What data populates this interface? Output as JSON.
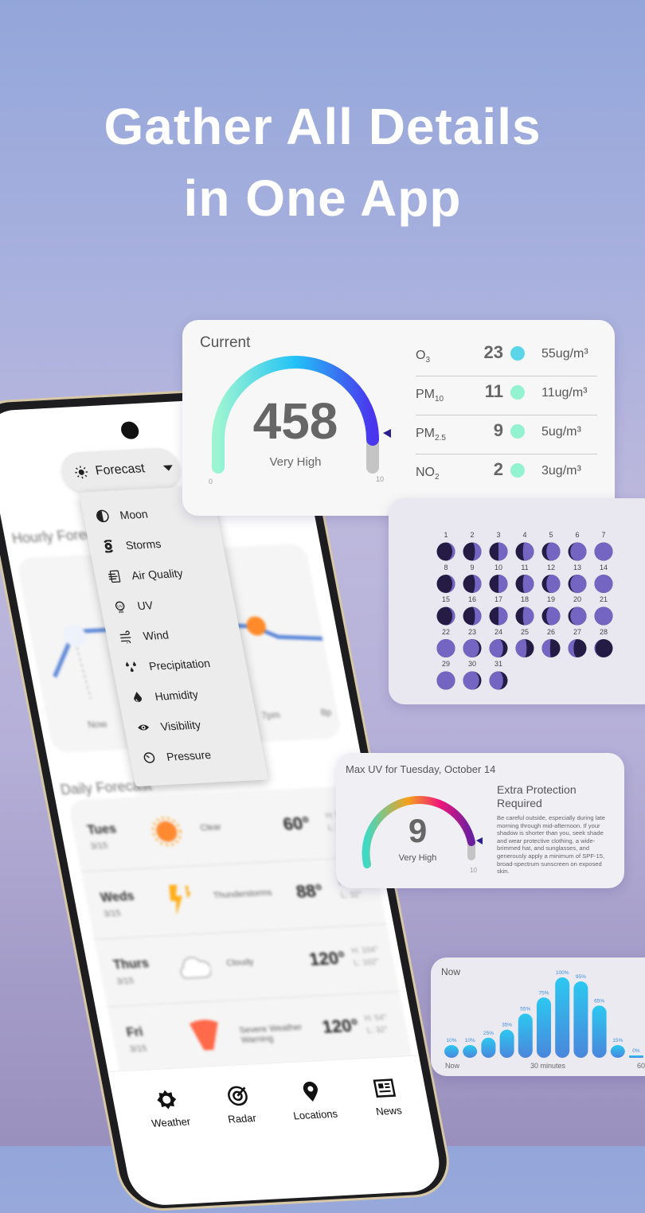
{
  "hero": {
    "line1": "Gather All Details",
    "line2": "in One App"
  },
  "phone": {
    "selector": {
      "label": "Forecast",
      "icon": "sun-icon"
    },
    "menu": [
      {
        "label": "Moon",
        "icon": "moon-icon"
      },
      {
        "label": "Storms",
        "icon": "hurricane-icon"
      },
      {
        "label": "Air Quality",
        "icon": "air-quality-icon"
      },
      {
        "label": "UV",
        "icon": "uv-icon"
      },
      {
        "label": "Wind",
        "icon": "wind-icon"
      },
      {
        "label": "Precipitation",
        "icon": "precipitation-icon"
      },
      {
        "label": "Humidity",
        "icon": "humidity-icon"
      },
      {
        "label": "Visibility",
        "icon": "eye-icon"
      },
      {
        "label": "Pressure",
        "icon": "gauge-icon"
      }
    ],
    "hourly_label": "Hourly Forecast",
    "hourly_times": [
      "Now",
      "7pm",
      "8p"
    ],
    "daily_label": "Daily Forecast",
    "daily": [
      {
        "day": "Tues",
        "date": "3/15",
        "condition": "Clear",
        "temp": "60°",
        "high": "H: 54°",
        "low": "L: 32°",
        "icon": "sun"
      },
      {
        "day": "Weds",
        "date": "3/15",
        "condition": "Thunderstorms",
        "temp": "88°",
        "high": "H: 54°",
        "low": "L: 32°",
        "icon": "lightning"
      },
      {
        "day": "Thurs",
        "date": "3/15",
        "condition": "Cloudy",
        "temp": "120°",
        "high": "H: 104°",
        "low": "L: 102°",
        "icon": "cloud"
      },
      {
        "day": "Fri",
        "date": "3/15",
        "condition": "Severe Weather Warning",
        "temp": "120°",
        "high": "H: 54°",
        "low": "L: 32°",
        "icon": "tornado"
      }
    ],
    "nav": [
      {
        "label": "Weather",
        "icon": "sun-gear-icon"
      },
      {
        "label": "Radar",
        "icon": "radar-icon"
      },
      {
        "label": "Locations",
        "icon": "location-pin-icon"
      },
      {
        "label": "News",
        "icon": "news-icon"
      }
    ]
  },
  "air_quality": {
    "title": "Current",
    "value": "458",
    "level": "Very High",
    "min": "0",
    "max": "10",
    "fill": 0.92,
    "rows": [
      {
        "name": "O",
        "sub": "3",
        "value": "23",
        "color": "#5ad6e8",
        "amount": "55ug/m³"
      },
      {
        "name": "PM",
        "sub": "10",
        "value": "11",
        "color": "#93f2cf",
        "amount": "11ug/m³"
      },
      {
        "name": "PM",
        "sub": "2.5",
        "value": "9",
        "color": "#93f2cf",
        "amount": "5ug/m³"
      },
      {
        "name": "NO",
        "sub": "2",
        "value": "2",
        "color": "#93f2cf",
        "amount": "3ug/m³"
      }
    ]
  },
  "moon_calendar": {
    "days": [
      {
        "d": "1",
        "lit": 0.15,
        "side": "right"
      },
      {
        "d": "2",
        "lit": 0.35,
        "side": "right"
      },
      {
        "d": "3",
        "lit": 0.5,
        "side": "right"
      },
      {
        "d": "4",
        "lit": 0.6,
        "side": "right"
      },
      {
        "d": "5",
        "lit": 0.75,
        "side": "right"
      },
      {
        "d": "6",
        "lit": 0.88,
        "side": "right"
      },
      {
        "d": "7",
        "lit": 1,
        "side": "right"
      },
      {
        "d": "8",
        "lit": 0.15,
        "side": "right"
      },
      {
        "d": "9",
        "lit": 0.35,
        "side": "right"
      },
      {
        "d": "10",
        "lit": 0.5,
        "side": "right"
      },
      {
        "d": "11",
        "lit": 0.6,
        "side": "right"
      },
      {
        "d": "12",
        "lit": 0.75,
        "side": "right"
      },
      {
        "d": "13",
        "lit": 0.88,
        "side": "right"
      },
      {
        "d": "14",
        "lit": 1,
        "side": "right"
      },
      {
        "d": "15",
        "lit": 0.15,
        "side": "right"
      },
      {
        "d": "16",
        "lit": 0.35,
        "side": "right"
      },
      {
        "d": "17",
        "lit": 0.5,
        "side": "right"
      },
      {
        "d": "18",
        "lit": 0.6,
        "side": "right"
      },
      {
        "d": "19",
        "lit": 0.75,
        "side": "right"
      },
      {
        "d": "20",
        "lit": 0.88,
        "side": "right"
      },
      {
        "d": "21",
        "lit": 1,
        "side": "right"
      },
      {
        "d": "22",
        "lit": 1,
        "side": "left"
      },
      {
        "d": "23",
        "lit": 0.88,
        "side": "left"
      },
      {
        "d": "24",
        "lit": 0.75,
        "side": "left"
      },
      {
        "d": "25",
        "lit": 0.6,
        "side": "left"
      },
      {
        "d": "26",
        "lit": 0.45,
        "side": "left"
      },
      {
        "d": "27",
        "lit": 0.3,
        "side": "left"
      },
      {
        "d": "28",
        "lit": 0.05,
        "side": "left"
      },
      {
        "d": "29",
        "lit": 1,
        "side": "left"
      },
      {
        "d": "30",
        "lit": 0.88,
        "side": "left"
      },
      {
        "d": "31",
        "lit": 0.75,
        "side": "left"
      }
    ],
    "light": "#7565c2",
    "dark": "#241c45"
  },
  "uv": {
    "title": "Max UV for Tuesday, October 14",
    "value": "9",
    "level": "Very High",
    "max": "10",
    "fill": 0.9,
    "heading": "Extra Protection Required",
    "body": "Be careful outside, especially during late morning through mid-afternoon. If your shadow is shorter than you, seek shade and wear protective clothing, a wide-brimmed hat, and sunglasses, and generously apply a minimum of SPF-15, broad-spectrum sunscreen on exposed skin."
  },
  "chart_data": {
    "type": "bar",
    "title": "Now",
    "categories": [
      "",
      "",
      "",
      "",
      "",
      "",
      "",
      "",
      "",
      "",
      ""
    ],
    "values": [
      10,
      10,
      25,
      35,
      55,
      75,
      100,
      95,
      65,
      15,
      0
    ],
    "labels": [
      "10%",
      "10%",
      "25%",
      "35%",
      "55%",
      "75%",
      "100%",
      "95%",
      "65%",
      "15%",
      "0%"
    ],
    "xticks": [
      "Now",
      "30 minutes",
      "60"
    ],
    "ylim": [
      0,
      100
    ],
    "color_top": "#2cc8f0",
    "color_bottom": "#4a86dc"
  }
}
